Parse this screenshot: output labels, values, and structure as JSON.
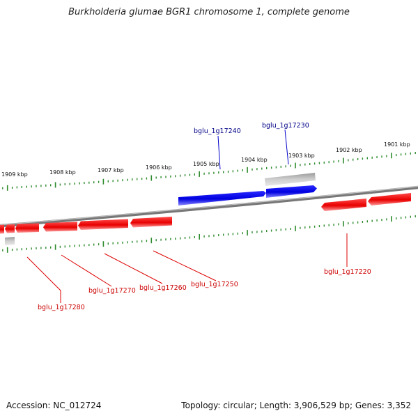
{
  "title": "Burkholderia glumae BGR1 chromosome 1, complete genome",
  "footer": {
    "accession_label": "Accession:",
    "accession": "NC_012724",
    "topology_label": "Topology:",
    "topology": "circular",
    "length_label": "Length:",
    "length": "3,906,529 bp",
    "genes_label": "Genes:",
    "genes": "3,352"
  },
  "scale_labels": [
    "1909 kbp",
    "1908 kbp",
    "1907 kbp",
    "1906 kbp",
    "1905 kbp",
    "1904 kbp",
    "1903 kbp",
    "1902 kbp",
    "1901 kbp"
  ],
  "colors": {
    "forward_gene": "#0000ee",
    "reverse_gene": "#ee0000",
    "pseudo_gene": "#aaaaaa",
    "backbone": "#888888",
    "ticks": "#2e8b2e",
    "forward_label": "#00008b",
    "reverse_label": "#cc0000"
  },
  "labeled_genes": [
    {
      "locus": "bglu_1g17240",
      "strand": "forward"
    },
    {
      "locus": "bglu_1g17230",
      "strand": "forward"
    },
    {
      "locus": "bglu_1g17220",
      "strand": "reverse"
    },
    {
      "locus": "bglu_1g17250",
      "strand": "reverse"
    },
    {
      "locus": "bglu_1g17260",
      "strand": "reverse"
    },
    {
      "locus": "bglu_1g17270",
      "strand": "reverse"
    },
    {
      "locus": "bglu_1g17280",
      "strand": "reverse"
    }
  ]
}
